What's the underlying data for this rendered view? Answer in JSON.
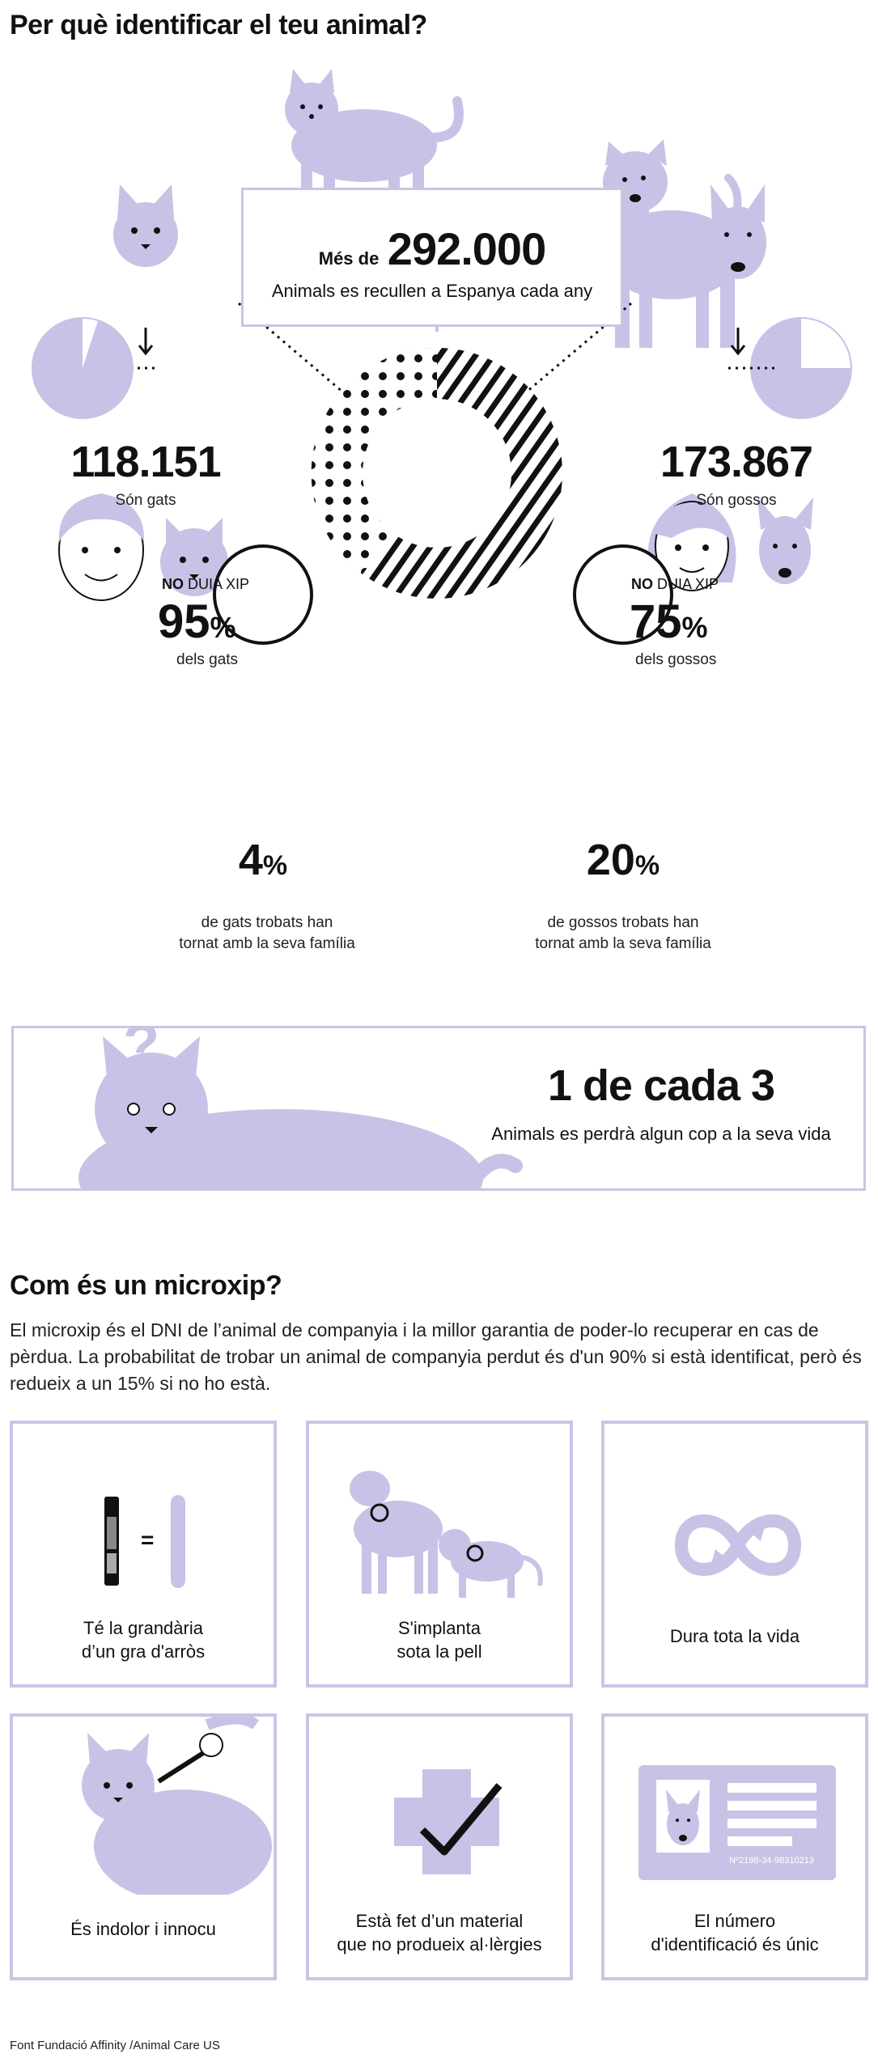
{
  "header": {
    "title": "Per què identificar el teu animal?"
  },
  "summary_box": {
    "prefix": "Més de",
    "value": "292.000",
    "caption": "Animals es recullen a Espanya cada any"
  },
  "cats": {
    "total": "118.151",
    "label": "Són gats",
    "no_chip_bold": "NO",
    "no_chip_rest": "DUIA XIP",
    "percent_value": "95",
    "percent_sign": "%",
    "percent_label": "dels gats",
    "no_chip_fraction": 0.95,
    "returned_value": "4",
    "returned_sign": "%",
    "returned_line1": "de gats trobats han",
    "returned_line2": "tornat amb la seva família"
  },
  "dogs": {
    "total": "173.867",
    "label": "Són gossos",
    "no_chip_bold": "NO",
    "no_chip_rest": "DUIA XIP",
    "percent_value": "75",
    "percent_sign": "%",
    "percent_label": "dels gossos",
    "no_chip_fraction": 0.75,
    "returned_value": "20",
    "returned_sign": "%",
    "returned_line1": "de gossos trobats han",
    "returned_line2": "tornat amb la seva família"
  },
  "lost_box": {
    "headline": "1 de cada 3",
    "caption": "Animals es perdrà algun cop a la seva vida",
    "question_mark": "?"
  },
  "microchip": {
    "title": "Com és un microxip?",
    "intro": "El microxip és el DNI de l’animal de companyia i la millor garantia de poder-lo recuperar en cas de pèrdua. La probabilitat de trobar un animal de companyia perdut és d'un 90% si està identificat, però és redueix a un 15% si no ho està.",
    "cards": [
      {
        "line1": "Té la grandària",
        "line2": "d’un gra d'arròs",
        "equals": "="
      },
      {
        "line1": "S'implanta",
        "line2": "sota la pell"
      },
      {
        "line1": "Dura tota la vida",
        "line2": ""
      },
      {
        "line1": "És indolor i innocu",
        "line2": ""
      },
      {
        "line1": "Està fet d’un material",
        "line2": "que no produeix al·lèrgies"
      },
      {
        "line1": "El número",
        "line2": "d'identificació és únic",
        "id_number": "Nº2198-34-98310213"
      }
    ]
  },
  "footer": {
    "source": "Font Fundació Affinity /Animal Care US"
  },
  "colors": {
    "lavender": "#c6c3e6",
    "border": "#c8c5e6",
    "ink": "#111111"
  }
}
